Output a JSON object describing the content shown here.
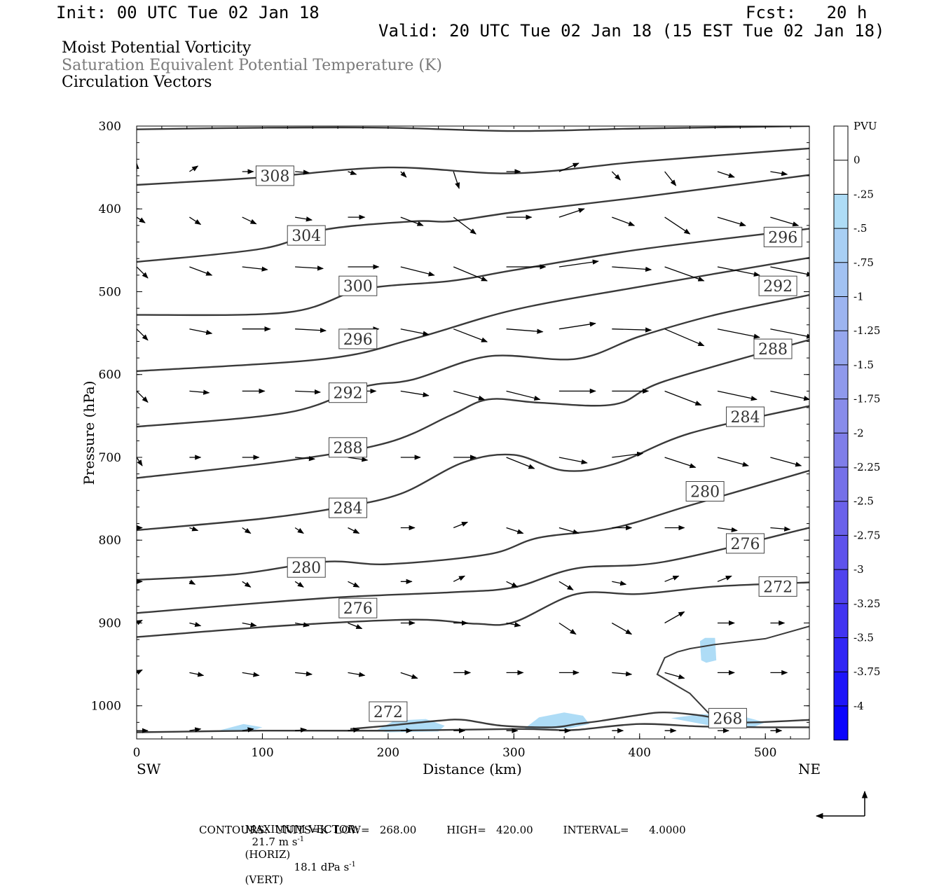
{
  "header": {
    "init": "Init: 00 UTC Tue 02 Jan 18",
    "fcst": "Fcst:   20 h",
    "valid": "Valid: 20 UTC Tue 02 Jan 18 (15 EST Tue 02 Jan 18)"
  },
  "fields": {
    "line1": "Moist Potential Vorticity",
    "line2": "Saturation Equivalent Potential Temperature (K)",
    "line3": "Circulation Vectors"
  },
  "footer": {
    "max_vector_label": "MAXIMUM VECTOR:",
    "max_vector_horiz_value": "21.7 m s",
    "max_vector_horiz_tag": "(HORIZ)",
    "max_vector_vert_value": "18.1 dPa s",
    "max_vector_vert_tag": "(VERT)",
    "superscript": "-1",
    "contours_line": "CONTOURS:  UNITS=K  LOW=   268.00         HIGH=   420.00         INTERVAL=      4.0000"
  },
  "colors": {
    "contour": "#3a3a3a",
    "pv_fill": "#aedcf6",
    "arrow": "#000000"
  },
  "chart_data": {
    "type": "cross-section",
    "xlabel": "Distance (km)",
    "ylabel": "Pressure (hPa)",
    "xlim": [
      0,
      535
    ],
    "ylim": [
      1040,
      300
    ],
    "x_ticks": [
      "0",
      "100",
      "200",
      "300",
      "400",
      "500"
    ],
    "y_ticks": [
      "300",
      "400",
      "500",
      "600",
      "700",
      "800",
      "900",
      "1000"
    ],
    "end_labels": {
      "left": "SW",
      "right": "NE"
    },
    "colorbar": {
      "title": "PVU",
      "levels": [
        "0",
        "-.25",
        "-.5",
        "-.75",
        "-1",
        "-1.25",
        "-1.5",
        "-1.75",
        "-2",
        "-2.25",
        "-2.5",
        "-2.75",
        "-3",
        "-3.25",
        "-3.5",
        "-3.75",
        "-4"
      ],
      "colors": [
        "#ffffff",
        "#ffffff",
        "#aedcf6",
        "#a8cff4",
        "#a2c2f2",
        "#9cb4f0",
        "#96a7ee",
        "#8f99ec",
        "#888cea",
        "#7f7ee9",
        "#7570e9",
        "#6a61ea",
        "#5e52ec",
        "#5043ee",
        "#4134f1",
        "#3025f5",
        "#1d15f9",
        "#0b05fd"
      ]
    },
    "contour_labels": [
      {
        "text": "308",
        "x": 110,
        "p": 360
      },
      {
        "text": "304",
        "x": 135,
        "p": 432
      },
      {
        "text": "300",
        "x": 176,
        "p": 493
      },
      {
        "text": "296",
        "x": 176,
        "p": 557
      },
      {
        "text": "292",
        "x": 168,
        "p": 622
      },
      {
        "text": "288",
        "x": 168,
        "p": 688
      },
      {
        "text": "284",
        "x": 168,
        "p": 761
      },
      {
        "text": "280",
        "x": 135,
        "p": 833
      },
      {
        "text": "276",
        "x": 176,
        "p": 882
      },
      {
        "text": "272",
        "x": 200,
        "p": 1007
      },
      {
        "text": "268",
        "x": 470,
        "p": 1015
      },
      {
        "text": "296",
        "x": 514,
        "p": 434
      },
      {
        "text": "292",
        "x": 510,
        "p": 493
      },
      {
        "text": "288",
        "x": 506,
        "p": 569
      },
      {
        "text": "284",
        "x": 484,
        "p": 651
      },
      {
        "text": "280",
        "x": 452,
        "p": 741
      },
      {
        "text": "276",
        "x": 484,
        "p": 804
      },
      {
        "text": "272",
        "x": 510,
        "p": 856
      }
    ],
    "contours": [
      {
        "theta": 312,
        "points": [
          [
            0,
            304
          ],
          [
            100,
            302
          ],
          [
            200,
            302
          ],
          [
            300,
            306
          ],
          [
            400,
            303
          ],
          [
            535,
            300
          ]
        ]
      },
      {
        "theta": 308,
        "points": [
          [
            0,
            371
          ],
          [
            100,
            362
          ],
          [
            200,
            350
          ],
          [
            300,
            357
          ],
          [
            400,
            343
          ],
          [
            535,
            327
          ]
        ]
      },
      {
        "theta": 304,
        "points": [
          [
            0,
            464
          ],
          [
            100,
            448
          ],
          [
            150,
            425
          ],
          [
            220,
            415
          ],
          [
            250,
            415
          ],
          [
            300,
            404
          ],
          [
            400,
            386
          ],
          [
            535,
            359
          ]
        ]
      },
      {
        "theta": 300,
        "points": [
          [
            0,
            528
          ],
          [
            120,
            525
          ],
          [
            180,
            497
          ],
          [
            250,
            487
          ],
          [
            300,
            474
          ],
          [
            400,
            449
          ],
          [
            535,
            424
          ]
        ]
      },
      {
        "theta": 296,
        "points": [
          [
            0,
            596
          ],
          [
            150,
            581
          ],
          [
            220,
            557
          ],
          [
            300,
            522
          ],
          [
            400,
            494
          ],
          [
            535,
            459
          ]
        ]
      },
      {
        "theta": 292,
        "points": [
          [
            0,
            663
          ],
          [
            120,
            646
          ],
          [
            180,
            615
          ],
          [
            220,
            606
          ],
          [
            280,
            578
          ],
          [
            350,
            581
          ],
          [
            400,
            554
          ],
          [
            460,
            528
          ],
          [
            535,
            504
          ]
        ]
      },
      {
        "theta": 288,
        "points": [
          [
            0,
            725
          ],
          [
            120,
            704
          ],
          [
            200,
            682
          ],
          [
            250,
            649
          ],
          [
            280,
            630
          ],
          [
            320,
            634
          ],
          [
            380,
            636
          ],
          [
            420,
            608
          ],
          [
            535,
            558
          ]
        ]
      },
      {
        "theta": 284,
        "points": [
          [
            0,
            788
          ],
          [
            100,
            774
          ],
          [
            160,
            761
          ],
          [
            210,
            744
          ],
          [
            260,
            706
          ],
          [
            300,
            697
          ],
          [
            340,
            716
          ],
          [
            380,
            708
          ],
          [
            440,
            671
          ],
          [
            535,
            638
          ]
        ]
      },
      {
        "theta": 280,
        "points": [
          [
            0,
            848
          ],
          [
            80,
            841
          ],
          [
            150,
            826
          ],
          [
            200,
            829
          ],
          [
            280,
            817
          ],
          [
            320,
            797
          ],
          [
            380,
            785
          ],
          [
            440,
            758
          ],
          [
            535,
            716
          ]
        ]
      },
      {
        "theta": 276,
        "points": [
          [
            0,
            888
          ],
          [
            150,
            870
          ],
          [
            250,
            863
          ],
          [
            300,
            857
          ],
          [
            350,
            834
          ],
          [
            420,
            826
          ],
          [
            535,
            785
          ]
        ]
      },
      {
        "theta": 272,
        "points": [
          [
            0,
            917
          ],
          [
            120,
            903
          ],
          [
            220,
            896
          ],
          [
            270,
            901
          ],
          [
            300,
            899
          ],
          [
            350,
            865
          ],
          [
            400,
            865
          ],
          [
            460,
            856
          ],
          [
            535,
            851
          ]
        ]
      },
      {
        "theta": 272,
        "points": [
          [
            170,
            1028
          ],
          [
            200,
            1024
          ],
          [
            240,
            1018
          ],
          [
            260,
            1017
          ],
          [
            290,
            1024
          ],
          [
            330,
            1026
          ],
          [
            350,
            1022
          ],
          [
            370,
            1018
          ],
          [
            400,
            1011
          ],
          [
            420,
            1008
          ],
          [
            450,
            1012
          ],
          [
            480,
            1020
          ],
          [
            535,
            1017
          ]
        ]
      },
      {
        "theta": 268,
        "points": [
          [
            0,
            1032
          ],
          [
            100,
            1030
          ],
          [
            200,
            1030
          ],
          [
            300,
            1028
          ],
          [
            330,
            1029
          ],
          [
            350,
            1029
          ],
          [
            400,
            1022
          ],
          [
            450,
            1025
          ],
          [
            500,
            1026
          ],
          [
            535,
            1026
          ]
        ]
      }
    ],
    "split_contour": [
      [
        535,
        904
      ],
      [
        500,
        919
      ],
      [
        460,
        926
      ],
      [
        440,
        931
      ],
      [
        430,
        935
      ],
      [
        420,
        942
      ],
      [
        414,
        962
      ],
      [
        440,
        985
      ],
      [
        460,
        1017
      ]
    ],
    "pv_regions": [
      {
        "level": "-.25",
        "points": [
          [
            65,
            1030
          ],
          [
            85,
            1022
          ],
          [
            100,
            1026
          ],
          [
            90,
            1031
          ]
        ]
      },
      {
        "level": "-.25",
        "points": [
          [
            190,
            1030
          ],
          [
            205,
            1018
          ],
          [
            230,
            1016
          ],
          [
            245,
            1024
          ],
          [
            240,
            1031
          ],
          [
            200,
            1032
          ]
        ]
      },
      {
        "level": "-.25",
        "points": [
          [
            308,
            1028
          ],
          [
            320,
            1014
          ],
          [
            340,
            1008
          ],
          [
            355,
            1012
          ],
          [
            360,
            1022
          ],
          [
            345,
            1027
          ]
        ]
      },
      {
        "level": "-.25",
        "points": [
          [
            425,
            1015
          ],
          [
            450,
            1010
          ],
          [
            480,
            1012
          ],
          [
            500,
            1020
          ],
          [
            490,
            1026
          ],
          [
            460,
            1025
          ]
        ]
      },
      {
        "level": "-.25",
        "points": [
          [
            448,
            922
          ],
          [
            452,
            918
          ],
          [
            460,
            918
          ],
          [
            461,
            945
          ],
          [
            453,
            948
          ],
          [
            449,
            945
          ]
        ]
      }
    ],
    "vectors": [
      {
        "p": 355,
        "u": [
          0,
          1.5,
          2,
          2.5,
          1.5,
          1,
          1,
          2.5,
          3.5,
          1.5,
          2,
          3,
          3,
          3.5
        ],
        "v": [
          -1.5,
          -1,
          0,
          0.2,
          0.5,
          1,
          3,
          0,
          -1.5,
          1.5,
          2.5,
          1,
          0.5,
          0.3
        ]
      },
      {
        "p": 410,
        "u": [
          1.5,
          2,
          2.5,
          3,
          3,
          4,
          4,
          4.5,
          4.5,
          4,
          4.5,
          5,
          5,
          5.5
        ],
        "v": [
          1,
          1.3,
          1.2,
          0.5,
          0,
          1.5,
          3,
          0,
          -1.5,
          1.5,
          3,
          1.5,
          1.5,
          1.2
        ]
      },
      {
        "p": 470,
        "u": [
          2,
          4,
          4.5,
          5,
          5.5,
          6,
          6,
          7,
          7,
          7,
          7,
          7.5,
          7.5,
          7.5
        ],
        "v": [
          2,
          1.5,
          0.5,
          0.3,
          0,
          1.5,
          2.5,
          0,
          -1,
          0.5,
          2.5,
          1.5,
          1.5,
          1.5
        ]
      },
      {
        "p": 545,
        "u": [
          2,
          4,
          5,
          5.5,
          5.5,
          5,
          6,
          6.5,
          6.5,
          7,
          7,
          7.5,
          7.5,
          7.5
        ],
        "v": [
          2,
          0.8,
          0,
          0.3,
          0,
          1,
          2.3,
          0.5,
          -1,
          0.2,
          3,
          1.5,
          1.5,
          1.5
        ]
      },
      {
        "p": 620,
        "u": [
          2,
          3.5,
          4,
          4.5,
          5,
          5,
          5.5,
          6,
          6.5,
          6.5,
          6.5,
          7,
          7,
          7.5
        ],
        "v": [
          2,
          0.3,
          0,
          0.2,
          0,
          0.8,
          1.5,
          1.5,
          0,
          0,
          2.5,
          1.5,
          1.5,
          2.5
        ]
      },
      {
        "p": 700,
        "u": [
          1,
          2,
          3,
          3.5,
          3.5,
          3.5,
          4,
          5,
          5,
          5.5,
          5.5,
          5.5,
          5.5,
          5.5
        ],
        "v": [
          1.5,
          0,
          0,
          0.3,
          0.5,
          0,
          0,
          2,
          1,
          -0.7,
          1.8,
          1.5,
          1.5,
          1.5
        ]
      },
      {
        "p": 785,
        "u": [
          1,
          1.5,
          1.5,
          1.5,
          2,
          2.5,
          2.5,
          3,
          3.5,
          3.5,
          3.5,
          3.5,
          3.5,
          3.5
        ],
        "v": [
          0,
          0.5,
          1,
          1,
          1,
          0,
          -1,
          1,
          1,
          0,
          0,
          0.5,
          0.3,
          0.6
        ]
      },
      {
        "p": 850,
        "u": [
          1,
          1,
          1.5,
          1.5,
          2,
          2,
          2,
          2,
          2.5,
          2.5,
          2.5,
          2.5,
          2.5,
          2.5
        ],
        "v": [
          0,
          0.5,
          1,
          1,
          1,
          0,
          -1,
          1,
          1.5,
          0.5,
          -1,
          -1,
          0,
          0
        ]
      },
      {
        "p": 900,
        "u": [
          1,
          2,
          2.5,
          2.5,
          2.5,
          2.5,
          2.5,
          2.5,
          3,
          3.5,
          3.5,
          3,
          2.5,
          2.5
        ],
        "v": [
          -0.5,
          0.5,
          0.5,
          0.5,
          1,
          0,
          0,
          0.5,
          2,
          2,
          -2,
          0,
          0,
          0
        ]
      },
      {
        "p": 960,
        "u": [
          1,
          2.5,
          3,
          3,
          3,
          3,
          3,
          3,
          3.5,
          3.5,
          3.5,
          3,
          3,
          2.5
        ],
        "v": [
          -0.5,
          0.5,
          0.5,
          0.3,
          0.5,
          1,
          0,
          0,
          0,
          0.3,
          1,
          0,
          0,
          0.2
        ]
      },
      {
        "p": 1030,
        "u": [
          2,
          2,
          2,
          2,
          2,
          2,
          2,
          2,
          2,
          2,
          2,
          2,
          2,
          2
        ],
        "v": [
          0,
          -0.3,
          -0.3,
          -0.2,
          -0.2,
          0,
          0,
          0,
          0,
          0,
          0,
          0,
          0,
          0
        ]
      }
    ]
  }
}
